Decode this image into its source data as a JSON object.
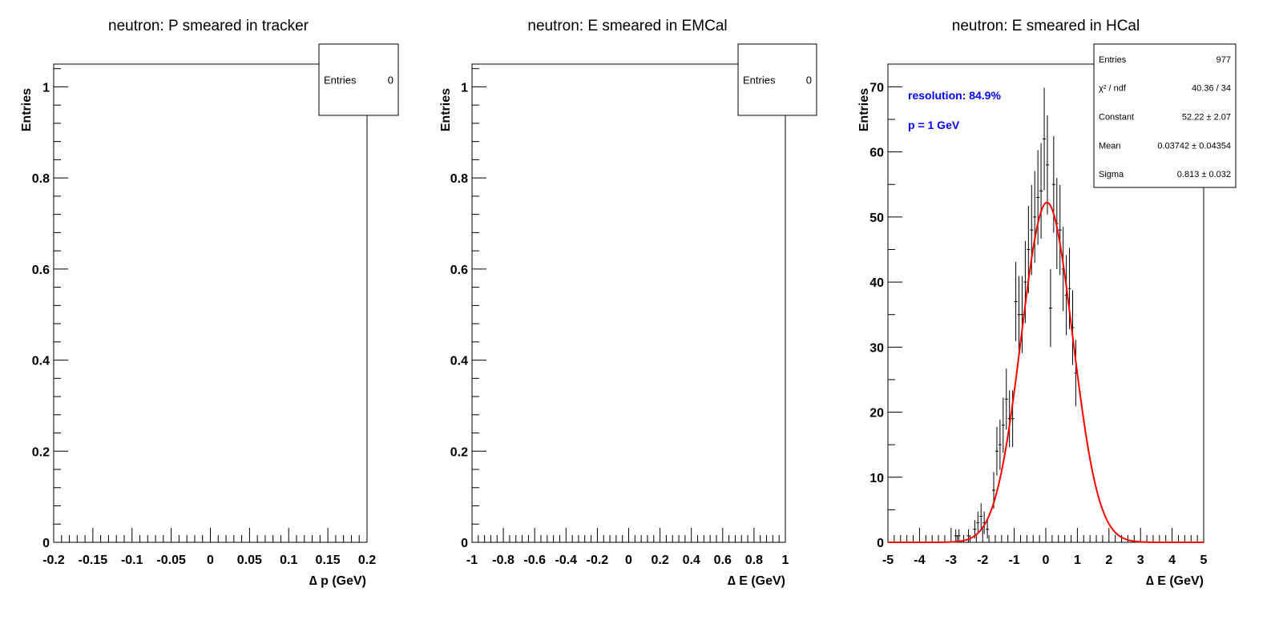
{
  "chart_data": [
    {
      "type": "histogram",
      "title": "neutron: P smeared in tracker",
      "xlabel": "∆ p (GeV)",
      "ylabel": "Entries",
      "xlim": [
        -0.2,
        0.2
      ],
      "ylim": [
        0,
        1.05
      ],
      "xticks": [
        "-0.2",
        "-0.15",
        "-0.1",
        "-0.05",
        "0",
        "0.05",
        "0.1",
        "0.15",
        "0.2"
      ],
      "yticks": [
        "0",
        "0.2",
        "0.4",
        "0.6",
        "0.8",
        "1"
      ],
      "stats": [
        {
          "label": "Entries",
          "value": "0"
        }
      ],
      "points": []
    },
    {
      "type": "histogram",
      "title": "neutron: E smeared in EMCal",
      "xlabel": "∆ E (GeV)",
      "ylabel": "Entries",
      "xlim": [
        -1,
        1
      ],
      "ylim": [
        0,
        1.05
      ],
      "xticks": [
        "-1",
        "-0.8",
        "-0.6",
        "-0.4",
        "-0.2",
        "0",
        "0.2",
        "0.4",
        "0.6",
        "0.8",
        "1"
      ],
      "yticks": [
        "0",
        "0.2",
        "0.4",
        "0.6",
        "0.8",
        "1"
      ],
      "stats": [
        {
          "label": "Entries",
          "value": "0"
        }
      ],
      "points": []
    },
    {
      "type": "histogram",
      "title": "neutron: E smeared in HCal",
      "xlabel": "∆ E (GeV)",
      "ylabel": "Entries",
      "xlim": [
        -5,
        5
      ],
      "ylim": [
        0,
        73.5
      ],
      "xticks": [
        "-5",
        "-4",
        "-3",
        "-2",
        "-1",
        "0",
        "1",
        "2",
        "3",
        "4",
        "5"
      ],
      "yticks": [
        "0",
        "10",
        "20",
        "30",
        "40",
        "50",
        "60",
        "70"
      ],
      "stats": [
        {
          "label": "Entries",
          "value": "977"
        },
        {
          "label": "χ² / ndf",
          "value": "40.36 / 34"
        },
        {
          "label": "Constant",
          "value": "52.22 ± 2.07"
        },
        {
          "label": "Mean",
          "value": "0.03742 ± 0.04354"
        },
        {
          "label": "Sigma",
          "value": "0.813 ± 0.032"
        }
      ],
      "annotations": [
        "resolution: 84.9%",
        "p = 1 GeV"
      ],
      "annotation_color": "#0000ff",
      "fit": {
        "function": "gaus",
        "constant": 52.22,
        "mean": 0.03742,
        "sigma": 0.813,
        "color": "#ff0000"
      },
      "bin_width": 0.1,
      "points": [
        {
          "x": -2.85,
          "y": 1
        },
        {
          "x": -2.75,
          "y": 1
        },
        {
          "x": -2.45,
          "y": 1
        },
        {
          "x": -2.25,
          "y": 2
        },
        {
          "x": -2.15,
          "y": 3
        },
        {
          "x": -2.05,
          "y": 4
        },
        {
          "x": -1.95,
          "y": 3
        },
        {
          "x": -1.85,
          "y": 2
        },
        {
          "x": -1.65,
          "y": 8
        },
        {
          "x": -1.55,
          "y": 14
        },
        {
          "x": -1.45,
          "y": 15
        },
        {
          "x": -1.35,
          "y": 18
        },
        {
          "x": -1.25,
          "y": 22
        },
        {
          "x": -1.15,
          "y": 19
        },
        {
          "x": -1.05,
          "y": 19
        },
        {
          "x": -0.95,
          "y": 37
        },
        {
          "x": -0.85,
          "y": 35
        },
        {
          "x": -0.75,
          "y": 35
        },
        {
          "x": -0.65,
          "y": 40
        },
        {
          "x": -0.55,
          "y": 45
        },
        {
          "x": -0.45,
          "y": 48
        },
        {
          "x": -0.35,
          "y": 50
        },
        {
          "x": -0.25,
          "y": 53
        },
        {
          "x": -0.15,
          "y": 54
        },
        {
          "x": -0.05,
          "y": 62
        },
        {
          "x": 0.05,
          "y": 58
        },
        {
          "x": 0.15,
          "y": 36
        },
        {
          "x": 0.25,
          "y": 55
        },
        {
          "x": 0.35,
          "y": 49
        },
        {
          "x": 0.45,
          "y": 48
        },
        {
          "x": 0.55,
          "y": 42
        },
        {
          "x": 0.65,
          "y": 38
        },
        {
          "x": 0.75,
          "y": 39
        },
        {
          "x": 0.85,
          "y": 33
        },
        {
          "x": 0.95,
          "y": 26
        }
      ]
    }
  ]
}
